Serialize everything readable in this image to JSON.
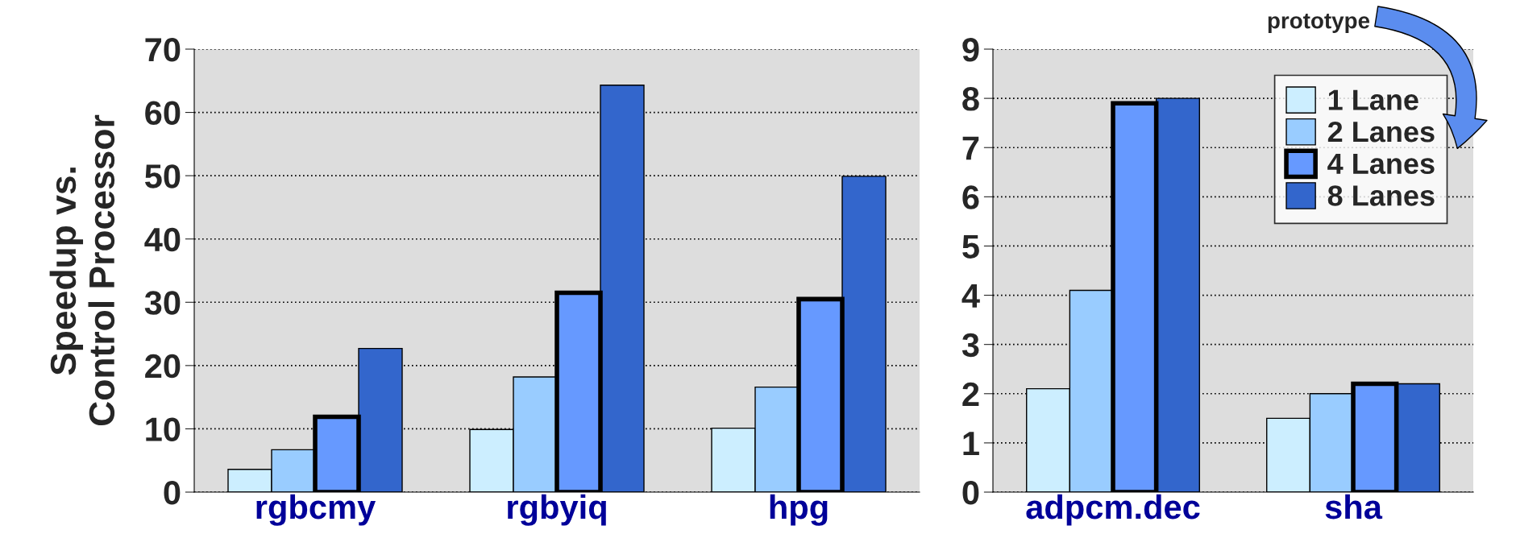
{
  "chart_data": [
    {
      "type": "bar",
      "ylabel": "Speedup vs.\nControl Processor",
      "categories": [
        "rgbcmy",
        "rgbyiq",
        "hpg"
      ],
      "ylim": [
        0,
        70
      ],
      "yticks": [
        0,
        10,
        20,
        30,
        40,
        50,
        60,
        70
      ],
      "grid": "y",
      "legend": false,
      "series": [
        {
          "color": "#cceeff",
          "values": [
            3.6,
            9.9,
            10.1
          ]
        },
        {
          "color": "#99ccff",
          "values": [
            6.7,
            18.2,
            16.6
          ]
        },
        {
          "color": "#6699ff",
          "values": [
            11.9,
            31.5,
            30.5
          ]
        },
        {
          "color": "#3366cc",
          "values": [
            22.7,
            64.3,
            49.9
          ]
        }
      ]
    },
    {
      "type": "bar",
      "categories": [
        "adpcm.dec",
        "sha"
      ],
      "ylim": [
        0,
        9
      ],
      "yticks": [
        0,
        1,
        2,
        3,
        4,
        5,
        6,
        7,
        8,
        9
      ],
      "grid": "y",
      "legend": "top right",
      "annotations": [
        "prototype"
      ],
      "series": [
        {
          "name": "1 Lane",
          "color": "#cceeff",
          "values": [
            2.1,
            1.5
          ]
        },
        {
          "name": "2 Lanes",
          "color": "#99ccff",
          "values": [
            4.1,
            2.0
          ]
        },
        {
          "name": "4 Lanes",
          "color": "#6699ff",
          "values": [
            7.9,
            2.2
          ]
        },
        {
          "name": "8 Lanes",
          "color": "#3366cc",
          "values": [
            8.0,
            2.2
          ]
        }
      ]
    }
  ]
}
